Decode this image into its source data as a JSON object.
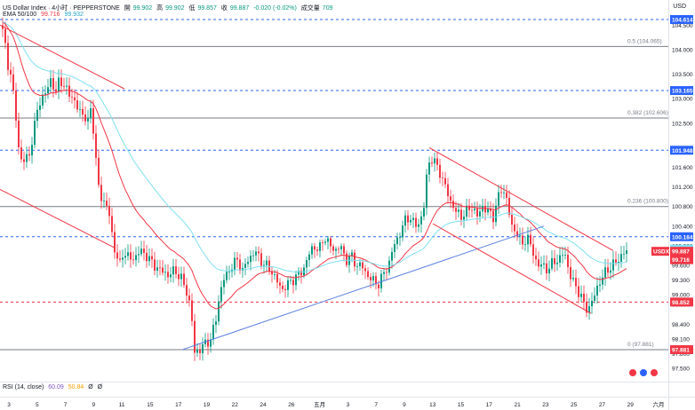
{
  "header": {
    "symbol": "US Dollar Index · 4小时 · PEPPERSTONE",
    "open_label": "開",
    "open": "99.902",
    "high_label": "高",
    "high": "99.902",
    "low_label": "低",
    "low": "99.857",
    "close_label": "收",
    "close": "99.887",
    "change": "-0.020 (-0.02%)",
    "volume_label": "成交量",
    "volume": "709",
    "ema_label": "EMA 50/100",
    "ema50": "99.716",
    "ema100": "99.932"
  },
  "currency": "USD",
  "rsi": {
    "label": "RSI (14, close)",
    "v1": "60.09",
    "v2": "50.84",
    "v3": "Ø",
    "v4": "Ø"
  },
  "colors": {
    "up": "#089981",
    "down": "#f23645",
    "ema50": "#f23645",
    "ema100": "#7fdff0",
    "trend": "#5b7fe0",
    "dash": "#2962ff"
  },
  "chart_data": {
    "type": "candlestick",
    "title": "US Dollar Index · 4小时 · PEPPERSTONE",
    "ylim": [
      97.3,
      105.0
    ],
    "y_ticks": [
      "104.500",
      "104.000",
      "103.500",
      "103.000",
      "102.500",
      "102.000",
      "101.600",
      "101.200",
      "100.800",
      "100.400",
      "100.000",
      "99.600",
      "99.300",
      "99.000",
      "98.800",
      "98.400",
      "98.100",
      "97.800",
      "97.500"
    ],
    "x_ticks": [
      "3",
      "5",
      "7",
      "9",
      "11",
      "15",
      "17",
      "19",
      "22",
      "24",
      "26",
      "五月",
      "3",
      "7",
      "9",
      "13",
      "15",
      "17",
      "21",
      "23",
      "25",
      "27",
      "29",
      "六月"
    ],
    "x_tick_dates": [
      "2025-04-03",
      "2025-04-05",
      "2025-04-07",
      "2025-04-09",
      "2025-04-11",
      "2025-04-15",
      "2025-04-17",
      "2025-04-19",
      "2025-04-22",
      "2025-04-24",
      "2025-04-26",
      "2025-05-01",
      "2025-05-03",
      "2025-05-07",
      "2025-05-09",
      "2025-05-13",
      "2025-05-15",
      "2025-05-17",
      "2025-05-21",
      "2025-05-23",
      "2025-05-25",
      "2025-05-27",
      "2025-05-29",
      "2025-06-01"
    ],
    "fib_levels": [
      {
        "label": "0.5 (104.065)",
        "value": 104.065
      },
      {
        "label": "0.382 (102.606)",
        "value": 102.606
      },
      {
        "label": "0.236 (100.800)",
        "value": 100.8
      },
      {
        "label": "0 (97.881)",
        "value": 97.881
      }
    ],
    "dashed_levels": [
      104.614,
      103.165,
      101.948,
      100.184,
      98.852
    ],
    "price_labels": [
      {
        "text": "104.614",
        "value": 104.614,
        "color": "#2962ff"
      },
      {
        "text": "103.165",
        "value": 103.165,
        "color": "#2962ff"
      },
      {
        "text": "101.948",
        "value": 101.948,
        "color": "#2962ff"
      },
      {
        "text": "100.184",
        "value": 100.184,
        "color": "#2962ff"
      },
      {
        "text": "99.932",
        "value": 99.932,
        "color": "#7fdff0"
      },
      {
        "text": "99.887",
        "value": 99.887,
        "color": "#f23645"
      },
      {
        "text": "99.716",
        "value": 99.716,
        "color": "#f23645"
      },
      {
        "text": "98.852",
        "value": 98.852,
        "color": "#f23645"
      },
      {
        "text": "97.881",
        "value": 97.881,
        "color": "#f23645"
      }
    ],
    "usdx_tag": {
      "text": "USDX",
      "value": 99.887
    },
    "waypoints": [
      [
        0,
        104.5
      ],
      [
        4,
        104.2
      ],
      [
        8,
        103.7
      ],
      [
        12,
        103.4
      ],
      [
        16,
        102.8
      ],
      [
        20,
        102.0
      ],
      [
        24,
        101.7
      ],
      [
        28,
        101.75
      ],
      [
        32,
        101.9
      ],
      [
        36,
        102.2
      ],
      [
        42,
        102.9
      ],
      [
        50,
        103.1
      ],
      [
        56,
        103.4
      ],
      [
        62,
        103.1
      ],
      [
        66,
        103.45
      ],
      [
        72,
        103.2
      ],
      [
        80,
        103.05
      ],
      [
        86,
        102.8
      ],
      [
        92,
        102.7
      ],
      [
        98,
        102.5
      ],
      [
        102,
        102.9
      ],
      [
        106,
        101.9
      ],
      [
        110,
        101.2
      ],
      [
        114,
        100.9
      ],
      [
        118,
        100.9
      ],
      [
        122,
        100.6
      ],
      [
        126,
        100.1
      ],
      [
        130,
        99.8
      ],
      [
        134,
        99.6
      ],
      [
        138,
        99.9
      ],
      [
        142,
        99.8
      ],
      [
        148,
        99.7
      ],
      [
        156,
        99.9
      ],
      [
        164,
        99.8
      ],
      [
        172,
        99.6
      ],
      [
        180,
        99.5
      ],
      [
        188,
        99.4
      ],
      [
        196,
        99.5
      ],
      [
        204,
        99.3
      ],
      [
        210,
        99.0
      ],
      [
        214,
        98.7
      ],
      [
        218,
        97.8
      ],
      [
        224,
        97.9
      ],
      [
        230,
        98.0
      ],
      [
        236,
        98.1
      ],
      [
        242,
        98.5
      ],
      [
        246,
        99.0
      ],
      [
        250,
        99.3
      ],
      [
        254,
        99.4
      ],
      [
        260,
        99.6
      ],
      [
        266,
        99.7
      ],
      [
        272,
        99.5
      ],
      [
        278,
        99.7
      ],
      [
        286,
        99.9
      ],
      [
        292,
        99.7
      ],
      [
        298,
        99.6
      ],
      [
        304,
        99.5
      ],
      [
        310,
        99.3
      ],
      [
        316,
        99.1
      ],
      [
        322,
        99.2
      ],
      [
        328,
        99.3
      ],
      [
        334,
        99.4
      ],
      [
        340,
        99.5
      ],
      [
        346,
        99.8
      ],
      [
        352,
        100.0
      ],
      [
        358,
        99.9
      ],
      [
        364,
        100.2
      ],
      [
        370,
        100.0
      ],
      [
        376,
        99.9
      ],
      [
        382,
        100.0
      ],
      [
        388,
        99.7
      ],
      [
        394,
        99.8
      ],
      [
        400,
        99.6
      ],
      [
        406,
        99.6
      ],
      [
        412,
        99.4
      ],
      [
        418,
        99.3
      ],
      [
        424,
        99.2
      ],
      [
        430,
        99.4
      ],
      [
        436,
        99.6
      ],
      [
        442,
        100.0
      ],
      [
        448,
        100.2
      ],
      [
        454,
        100.5
      ],
      [
        460,
        100.6
      ],
      [
        466,
        100.4
      ],
      [
        472,
        100.5
      ],
      [
        476,
        100.8
      ],
      [
        480,
        101.6
      ],
      [
        484,
        101.8
      ],
      [
        488,
        101.7
      ],
      [
        494,
        101.5
      ],
      [
        500,
        101.2
      ],
      [
        506,
        100.9
      ],
      [
        512,
        100.7
      ],
      [
        518,
        100.6
      ],
      [
        524,
        100.7
      ],
      [
        530,
        100.8
      ],
      [
        536,
        100.6
      ],
      [
        542,
        100.8
      ],
      [
        548,
        100.7
      ],
      [
        554,
        100.6
      ],
      [
        560,
        101.0
      ],
      [
        564,
        101.2
      ],
      [
        570,
        100.9
      ],
      [
        574,
        100.4
      ],
      [
        580,
        100.3
      ],
      [
        586,
        100.0
      ],
      [
        592,
        100.2
      ],
      [
        598,
        99.9
      ],
      [
        604,
        99.6
      ],
      [
        610,
        99.6
      ],
      [
        616,
        99.5
      ],
      [
        622,
        99.7
      ],
      [
        628,
        99.7
      ],
      [
        634,
        99.9
      ],
      [
        640,
        99.4
      ],
      [
        646,
        99.2
      ],
      [
        652,
        99.0
      ],
      [
        656,
        98.8
      ],
      [
        660,
        98.7
      ],
      [
        664,
        98.8
      ],
      [
        668,
        99.0
      ],
      [
        672,
        99.2
      ],
      [
        678,
        99.4
      ],
      [
        682,
        99.5
      ],
      [
        688,
        99.6
      ],
      [
        694,
        99.7
      ],
      [
        700,
        99.85
      ],
      [
        705,
        99.88
      ]
    ]
  }
}
